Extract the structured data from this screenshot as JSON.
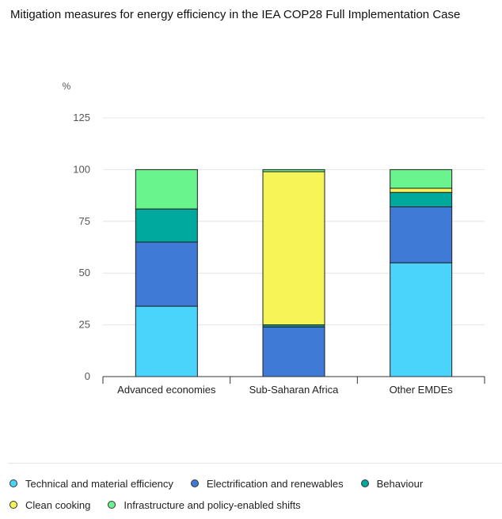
{
  "title": "Mitigation measures for energy efficiency in the IEA COP28 Full Implementation Case",
  "chart_data": {
    "type": "bar",
    "stacked": true,
    "unit": "%",
    "categories": [
      "Advanced economies",
      "Sub-Saharan Africa",
      "Other EMDEs"
    ],
    "ylim": [
      0,
      125
    ],
    "yticks": [
      0,
      25,
      50,
      75,
      100,
      125
    ],
    "grid": true,
    "legend_position": "bottom",
    "series": [
      {
        "name": "Technical and material efficiency",
        "color": "#4ad4fc",
        "values": [
          34,
          0,
          55
        ]
      },
      {
        "name": "Electrification and renewables",
        "color": "#3f7ad6",
        "values": [
          31,
          24,
          27
        ]
      },
      {
        "name": "Behaviour",
        "color": "#00a99d",
        "values": [
          16,
          1,
          7
        ]
      },
      {
        "name": "Clean cooking",
        "color": "#f6f558",
        "values": [
          0,
          74,
          2
        ]
      },
      {
        "name": "Infrastructure and policy-enabled shifts",
        "color": "#6af48e",
        "values": [
          19,
          1,
          9
        ]
      }
    ]
  },
  "legend": {
    "rows": [
      [
        {
          "label": "Technical and material efficiency",
          "color": "#4ad4fc",
          "icon": "circle-dot-icon"
        },
        {
          "label": "Electrification and renewables",
          "color": "#3f7ad6",
          "icon": "circle-dot-icon"
        },
        {
          "label": "Behaviour",
          "color": "#00a99d",
          "icon": "circle-dot-icon"
        }
      ],
      [
        {
          "label": "Clean cooking",
          "color": "#f6f558",
          "icon": "circle-dot-icon"
        },
        {
          "label": "Infrastructure and policy-enabled shifts",
          "color": "#6af48e",
          "icon": "circle-dot-icon"
        }
      ]
    ]
  }
}
